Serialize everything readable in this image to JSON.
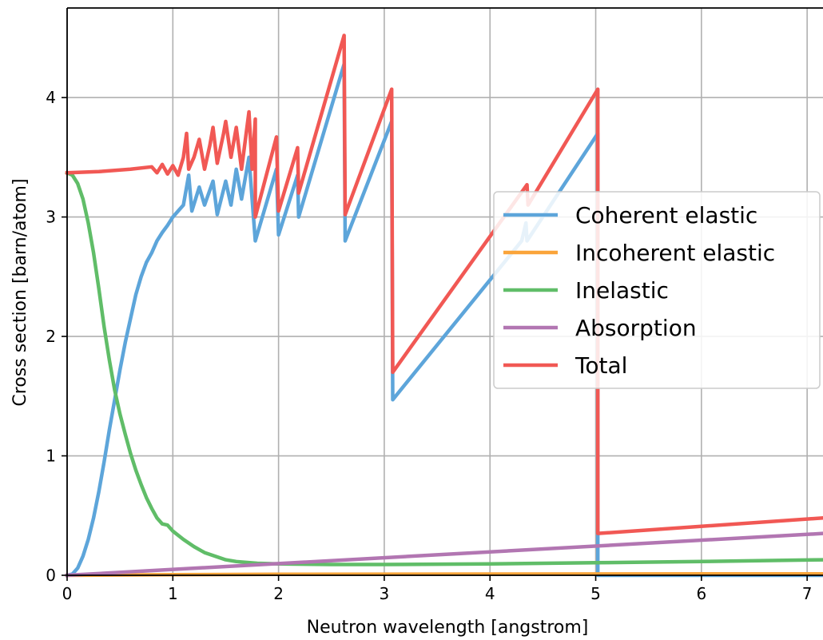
{
  "chart_data": {
    "type": "line",
    "xlabel": "Neutron wavelength [angstrom]",
    "ylabel": "Cross section [barn/atom]",
    "xlim": [
      0,
      7.15
    ],
    "ylim": [
      0,
      4.75
    ],
    "xticks": [
      0,
      1,
      2,
      3,
      4,
      5,
      6,
      7
    ],
    "yticks": [
      0,
      1,
      2,
      3,
      4
    ],
    "grid": true,
    "legend_position": "center-right",
    "series": [
      {
        "name": "Coherent elastic",
        "color": "#5da5da",
        "points": [
          [
            0,
            0
          ],
          [
            0.05,
            0.01
          ],
          [
            0.1,
            0.06
          ],
          [
            0.15,
            0.16
          ],
          [
            0.2,
            0.3
          ],
          [
            0.25,
            0.48
          ],
          [
            0.3,
            0.7
          ],
          [
            0.35,
            0.95
          ],
          [
            0.4,
            1.22
          ],
          [
            0.45,
            1.47
          ],
          [
            0.5,
            1.72
          ],
          [
            0.55,
            1.95
          ],
          [
            0.6,
            2.15
          ],
          [
            0.65,
            2.35
          ],
          [
            0.7,
            2.5
          ],
          [
            0.75,
            2.62
          ],
          [
            0.8,
            2.7
          ],
          [
            0.85,
            2.8
          ],
          [
            0.9,
            2.87
          ],
          [
            0.95,
            2.93
          ],
          [
            1.0,
            3.0
          ],
          [
            1.05,
            3.05
          ],
          [
            1.1,
            3.1
          ],
          [
            1.15,
            3.35
          ],
          [
            1.18,
            3.05
          ],
          [
            1.25,
            3.25
          ],
          [
            1.3,
            3.1
          ],
          [
            1.38,
            3.3
          ],
          [
            1.42,
            3.02
          ],
          [
            1.5,
            3.3
          ],
          [
            1.55,
            3.1
          ],
          [
            1.6,
            3.4
          ],
          [
            1.65,
            3.15
          ],
          [
            1.72,
            3.5
          ],
          [
            1.78,
            2.8
          ],
          [
            1.98,
            3.4
          ],
          [
            2.0,
            2.85
          ],
          [
            2.18,
            3.35
          ],
          [
            2.19,
            3.0
          ],
          [
            2.62,
            4.28
          ],
          [
            2.63,
            2.8
          ],
          [
            3.07,
            3.8
          ],
          [
            3.08,
            1.47
          ],
          [
            4.3,
            2.8
          ],
          [
            4.34,
            2.95
          ],
          [
            4.35,
            2.8
          ],
          [
            5.02,
            3.7
          ],
          [
            5.02,
            0.0
          ],
          [
            7.15,
            0.0
          ]
        ]
      },
      {
        "name": "Incoherent elastic",
        "color": "#faa43a",
        "points": [
          [
            0,
            0
          ],
          [
            1,
            0.005
          ],
          [
            2,
            0.008
          ],
          [
            4,
            0.01
          ],
          [
            7.15,
            0.012
          ]
        ]
      },
      {
        "name": "Inelastic",
        "color": "#60bd68",
        "points": [
          [
            0,
            3.37
          ],
          [
            0.05,
            3.35
          ],
          [
            0.1,
            3.28
          ],
          [
            0.15,
            3.15
          ],
          [
            0.2,
            2.95
          ],
          [
            0.25,
            2.7
          ],
          [
            0.3,
            2.4
          ],
          [
            0.35,
            2.08
          ],
          [
            0.4,
            1.8
          ],
          [
            0.45,
            1.55
          ],
          [
            0.5,
            1.35
          ],
          [
            0.55,
            1.18
          ],
          [
            0.6,
            1.02
          ],
          [
            0.65,
            0.88
          ],
          [
            0.7,
            0.76
          ],
          [
            0.75,
            0.65
          ],
          [
            0.8,
            0.56
          ],
          [
            0.85,
            0.48
          ],
          [
            0.9,
            0.43
          ],
          [
            0.95,
            0.42
          ],
          [
            1.0,
            0.37
          ],
          [
            1.1,
            0.3
          ],
          [
            1.2,
            0.24
          ],
          [
            1.3,
            0.19
          ],
          [
            1.4,
            0.16
          ],
          [
            1.5,
            0.13
          ],
          [
            1.6,
            0.115
          ],
          [
            1.8,
            0.1
          ],
          [
            2.0,
            0.095
          ],
          [
            2.5,
            0.09
          ],
          [
            3.0,
            0.09
          ],
          [
            4.0,
            0.095
          ],
          [
            5.0,
            0.105
          ],
          [
            6.0,
            0.115
          ],
          [
            7.15,
            0.13
          ]
        ]
      },
      {
        "name": "Absorption",
        "color": "#b276b2",
        "points": [
          [
            0,
            0
          ],
          [
            7.15,
            0.35
          ]
        ]
      },
      {
        "name": "Total",
        "color": "#f15854",
        "points": [
          [
            0,
            3.37
          ],
          [
            0.3,
            3.38
          ],
          [
            0.6,
            3.4
          ],
          [
            0.8,
            3.42
          ],
          [
            0.85,
            3.37
          ],
          [
            0.9,
            3.44
          ],
          [
            0.95,
            3.36
          ],
          [
            1.0,
            3.43
          ],
          [
            1.05,
            3.35
          ],
          [
            1.1,
            3.5
          ],
          [
            1.13,
            3.7
          ],
          [
            1.15,
            3.4
          ],
          [
            1.2,
            3.5
          ],
          [
            1.25,
            3.65
          ],
          [
            1.3,
            3.4
          ],
          [
            1.35,
            3.6
          ],
          [
            1.38,
            3.75
          ],
          [
            1.42,
            3.45
          ],
          [
            1.48,
            3.7
          ],
          [
            1.5,
            3.8
          ],
          [
            1.55,
            3.5
          ],
          [
            1.6,
            3.75
          ],
          [
            1.65,
            3.4
          ],
          [
            1.72,
            3.88
          ],
          [
            1.75,
            3.4
          ],
          [
            1.78,
            3.82
          ],
          [
            1.78,
            3.0
          ],
          [
            1.98,
            3.67
          ],
          [
            2.0,
            3.05
          ],
          [
            2.18,
            3.58
          ],
          [
            2.19,
            3.2
          ],
          [
            2.62,
            4.52
          ],
          [
            2.63,
            3.02
          ],
          [
            3.07,
            4.07
          ],
          [
            3.08,
            1.7
          ],
          [
            4.35,
            3.27
          ],
          [
            4.36,
            3.1
          ],
          [
            5.02,
            4.07
          ],
          [
            5.02,
            0.35
          ],
          [
            7.15,
            0.48
          ]
        ]
      }
    ]
  }
}
